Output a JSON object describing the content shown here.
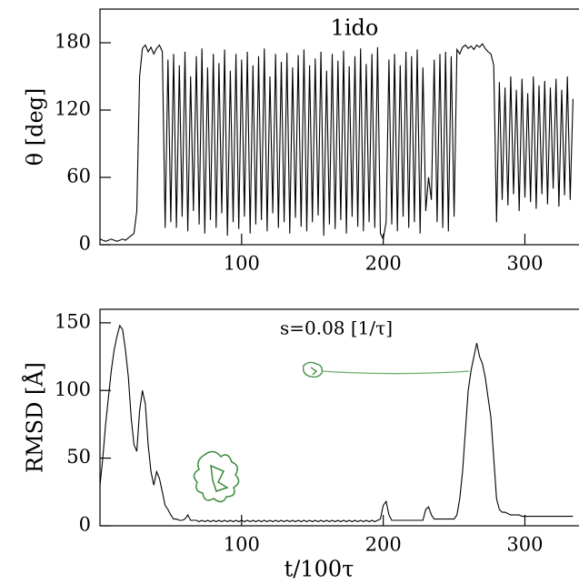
{
  "chart_data": [
    {
      "type": "line",
      "title": "1ido",
      "ylabel": "θ [deg]",
      "xlim": [
        0,
        335
      ],
      "ylim": [
        0,
        210
      ],
      "xticks": [
        100,
        200,
        300
      ],
      "yticks": [
        0,
        60,
        120,
        180
      ],
      "x": [
        0,
        2,
        4,
        6,
        8,
        10,
        12,
        14,
        16,
        18,
        20,
        22,
        24,
        26,
        28,
        30,
        32,
        34,
        36,
        38,
        40,
        42,
        44,
        46,
        48,
        50,
        52,
        54,
        56,
        58,
        60,
        62,
        64,
        66,
        68,
        70,
        72,
        74,
        76,
        78,
        80,
        82,
        84,
        86,
        88,
        90,
        92,
        94,
        96,
        98,
        100,
        102,
        104,
        106,
        108,
        110,
        112,
        114,
        116,
        118,
        120,
        122,
        124,
        126,
        128,
        130,
        132,
        134,
        136,
        138,
        140,
        142,
        144,
        146,
        148,
        150,
        152,
        154,
        156,
        158,
        160,
        162,
        164,
        166,
        168,
        170,
        172,
        174,
        176,
        178,
        180,
        182,
        184,
        186,
        188,
        190,
        192,
        194,
        196,
        198,
        200,
        202,
        204,
        206,
        208,
        210,
        212,
        214,
        216,
        218,
        220,
        222,
        224,
        226,
        228,
        230,
        232,
        234,
        236,
        238,
        240,
        242,
        244,
        246,
        248,
        250,
        252,
        254,
        256,
        258,
        260,
        262,
        264,
        266,
        268,
        270,
        272,
        274,
        276,
        278,
        280,
        282,
        284,
        286,
        288,
        290,
        292,
        294,
        296,
        298,
        300,
        302,
        304,
        306,
        308,
        310,
        312,
        314,
        316,
        318,
        320,
        322,
        324,
        326,
        328,
        330,
        332,
        334
      ],
      "series": [
        {
          "color": "#000000",
          "values": [
            5,
            4,
            3,
            4,
            5,
            4,
            3,
            4,
            5,
            4,
            6,
            8,
            10,
            30,
            150,
            175,
            178,
            172,
            176,
            170,
            175,
            178,
            172,
            15,
            165,
            20,
            170,
            15,
            160,
            25,
            172,
            12,
            150,
            30,
            168,
            18,
            175,
            10,
            158,
            22,
            170,
            15,
            162,
            28,
            174,
            8,
            155,
            20,
            170,
            14,
            165,
            25,
            172,
            10,
            160,
            18,
            168,
            22,
            175,
            12,
            150,
            28,
            170,
            15,
            163,
            20,
            171,
            10,
            158,
            24,
            169,
            16,
            174,
            12,
            160,
            20,
            166,
            26,
            172,
            8,
            155,
            18,
            170,
            14,
            164,
            22,
            173,
            10,
            159,
            25,
            168,
            16,
            175,
            12,
            161,
            20,
            170,
            15,
            176,
            10,
            5,
            20,
            165,
            18,
            170,
            12,
            160,
            25,
            172,
            15,
            168,
            20,
            174,
            10,
            158,
            30,
            60,
            40,
            165,
            20,
            170,
            15,
            172,
            12,
            168,
            25,
            174,
            170,
            176,
            178,
            175,
            177,
            174,
            178,
            176,
            179,
            175,
            172,
            170,
            160,
            20,
            145,
            40,
            140,
            35,
            150,
            45,
            138,
            30,
            148,
            42,
            135,
            38,
            150,
            32,
            142,
            45,
            146,
            36,
            140,
            50,
            148,
            34,
            138,
            44,
            150,
            40,
            130
          ]
        }
      ]
    },
    {
      "type": "line",
      "title": "s=0.08 [1/τ]",
      "ylabel": "RMSD [Å]",
      "xlabel": "t/100τ",
      "xlim": [
        0,
        335
      ],
      "ylim": [
        0,
        160
      ],
      "xticks": [
        100,
        200,
        300
      ],
      "yticks": [
        0,
        50,
        100,
        150
      ],
      "x": [
        0,
        2,
        4,
        6,
        8,
        10,
        12,
        14,
        16,
        18,
        20,
        22,
        24,
        26,
        28,
        30,
        32,
        34,
        36,
        38,
        40,
        42,
        44,
        46,
        48,
        50,
        52,
        54,
        56,
        58,
        60,
        62,
        64,
        66,
        68,
        70,
        72,
        74,
        76,
        78,
        80,
        82,
        84,
        86,
        88,
        90,
        92,
        94,
        96,
        98,
        100,
        102,
        104,
        106,
        108,
        110,
        112,
        114,
        116,
        118,
        120,
        122,
        124,
        126,
        128,
        130,
        132,
        134,
        136,
        138,
        140,
        142,
        144,
        146,
        148,
        150,
        152,
        154,
        156,
        158,
        160,
        162,
        164,
        166,
        168,
        170,
        172,
        174,
        176,
        178,
        180,
        182,
        184,
        186,
        188,
        190,
        192,
        194,
        196,
        198,
        200,
        202,
        204,
        206,
        208,
        210,
        212,
        214,
        216,
        218,
        220,
        222,
        224,
        226,
        228,
        230,
        232,
        234,
        236,
        238,
        240,
        242,
        244,
        246,
        248,
        250,
        252,
        254,
        256,
        258,
        260,
        262,
        264,
        266,
        268,
        270,
        272,
        274,
        276,
        278,
        280,
        282,
        284,
        286,
        288,
        290,
        292,
        294,
        296,
        298,
        300,
        302,
        304,
        306,
        308,
        310,
        312,
        314,
        316,
        318,
        320,
        322,
        324,
        326,
        328,
        330,
        332,
        334
      ],
      "series": [
        {
          "color": "#000000",
          "values": [
            30,
            50,
            75,
            95,
            115,
            130,
            140,
            148,
            145,
            130,
            110,
            80,
            60,
            55,
            85,
            100,
            90,
            60,
            40,
            30,
            40,
            35,
            25,
            15,
            12,
            8,
            5,
            5,
            4,
            4,
            5,
            8,
            4,
            4,
            4,
            3,
            4,
            3,
            4,
            3,
            4,
            3,
            4,
            3,
            4,
            3,
            4,
            3,
            4,
            3,
            4,
            3,
            4,
            3,
            4,
            3,
            4,
            3,
            4,
            3,
            4,
            3,
            4,
            3,
            4,
            3,
            4,
            3,
            4,
            3,
            4,
            3,
            4,
            3,
            4,
            3,
            4,
            3,
            4,
            3,
            4,
            3,
            4,
            3,
            4,
            3,
            4,
            3,
            4,
            3,
            4,
            3,
            4,
            3,
            4,
            3,
            4,
            3,
            4,
            5,
            15,
            18,
            8,
            4,
            4,
            4,
            4,
            4,
            4,
            4,
            4,
            4,
            4,
            4,
            4,
            12,
            14,
            8,
            5,
            5,
            5,
            5,
            5,
            5,
            5,
            5,
            8,
            20,
            40,
            70,
            100,
            115,
            125,
            135,
            125,
            120,
            110,
            95,
            80,
            50,
            20,
            12,
            10,
            10,
            9,
            8,
            8,
            8,
            8,
            7,
            7,
            7,
            7,
            7,
            7,
            7,
            7,
            7,
            7,
            7,
            7,
            7,
            7,
            7,
            7,
            7,
            7,
            7
          ]
        }
      ]
    }
  ]
}
